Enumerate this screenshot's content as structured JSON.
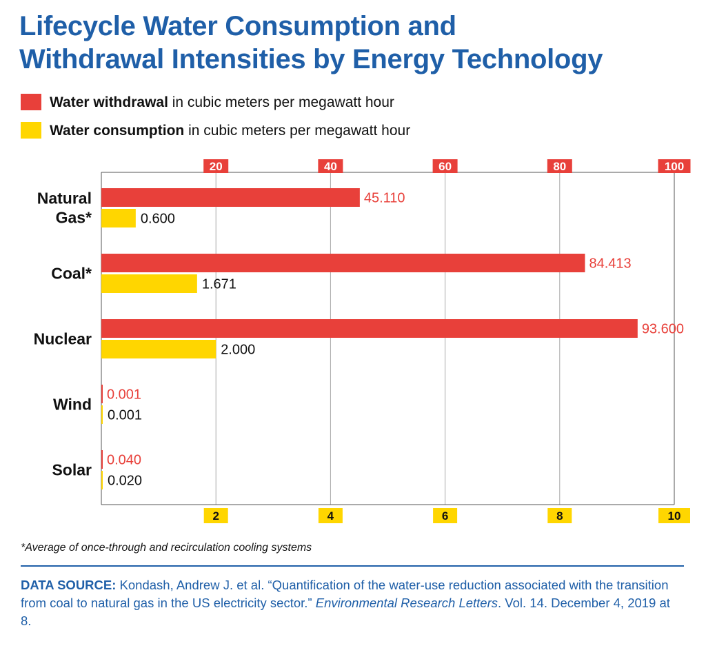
{
  "title": {
    "line1": "Lifecycle Water Consumption and",
    "line2": "Withdrawal Intensities by Energy Technology"
  },
  "legend": {
    "withdrawal": {
      "label_bold": "Water withdrawal",
      "label_rest": " in cubic meters per megawatt hour",
      "color": "#e8403a"
    },
    "consumption": {
      "label_bold": "Water consumption",
      "label_rest": " in cubic meters per megawatt hour",
      "color": "#ffd600"
    }
  },
  "chart_data": {
    "type": "bar",
    "orientation": "horizontal",
    "categories": [
      [
        "Natural",
        "Gas*"
      ],
      [
        "Coal*"
      ],
      [
        "Nuclear"
      ],
      [
        "Wind"
      ],
      [
        "Solar"
      ]
    ],
    "series": [
      {
        "name": "Water withdrawal",
        "axis": "top",
        "color": "#e8403a",
        "values": [
          45.11,
          84.413,
          93.6,
          0.001,
          0.04
        ],
        "labels": [
          "45.110",
          "84.413",
          "93.600",
          "0.001",
          "0.040"
        ]
      },
      {
        "name": "Water consumption",
        "axis": "bottom",
        "color": "#ffd600",
        "values": [
          0.6,
          1.671,
          2.0,
          0.001,
          0.02
        ],
        "labels": [
          "0.600",
          "1.671",
          "2.000",
          "0.001",
          "0.020"
        ]
      }
    ],
    "top_axis": {
      "range": [
        0,
        100
      ],
      "ticks": [
        "20",
        "40",
        "60",
        "80",
        "100"
      ],
      "tick_values": [
        20,
        40,
        60,
        80,
        100
      ]
    },
    "bottom_axis": {
      "range": [
        0,
        10
      ],
      "ticks": [
        "2",
        "4",
        "6",
        "8",
        "10"
      ],
      "tick_values": [
        2,
        4,
        6,
        8,
        10
      ]
    },
    "grid": true
  },
  "footnote": "*Average of once-through and recirculation cooling systems",
  "source": {
    "label": "DATA SOURCE:",
    "text1": " Kondash, Andrew J. et al. “Quantification of the water-use reduction associated with the transition from coal to natural gas in the US electricity sector.” ",
    "journal": "Environmental Research Letters",
    "text2": ". Vol. 14. December 4, 2019 at 8."
  }
}
